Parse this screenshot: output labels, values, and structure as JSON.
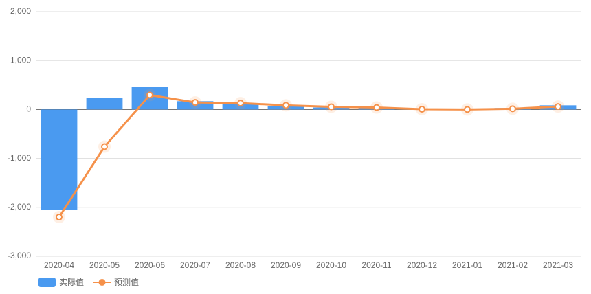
{
  "chart_data": {
    "type": "bar_line",
    "categories": [
      "2020-04",
      "2020-05",
      "2020-06",
      "2020-07",
      "2020-08",
      "2020-09",
      "2020-10",
      "2020-11",
      "2020-12",
      "2021-01",
      "2021-02",
      "2021-03"
    ],
    "series": [
      {
        "name": "实际值",
        "type": "bar",
        "color": "#4a9af0",
        "values": [
          -2050,
          240,
          465,
          170,
          130,
          70,
          40,
          40,
          5,
          3,
          30,
          85
        ]
      },
      {
        "name": "预测值",
        "type": "line",
        "color": "#f5914a",
        "values": [
          -2200,
          -760,
          295,
          145,
          130,
          85,
          55,
          40,
          5,
          0,
          15,
          60
        ]
      }
    ],
    "ylim": [
      -3000,
      2000
    ],
    "yticks": [
      {
        "value": -3000,
        "label": "-3,000"
      },
      {
        "value": -2000,
        "label": "-2,000"
      },
      {
        "value": -1000,
        "label": "-1,000"
      },
      0,
      {
        "value": 1000,
        "label": "1,000"
      },
      {
        "value": 2000,
        "label": "2,000"
      }
    ],
    "grid": true
  }
}
